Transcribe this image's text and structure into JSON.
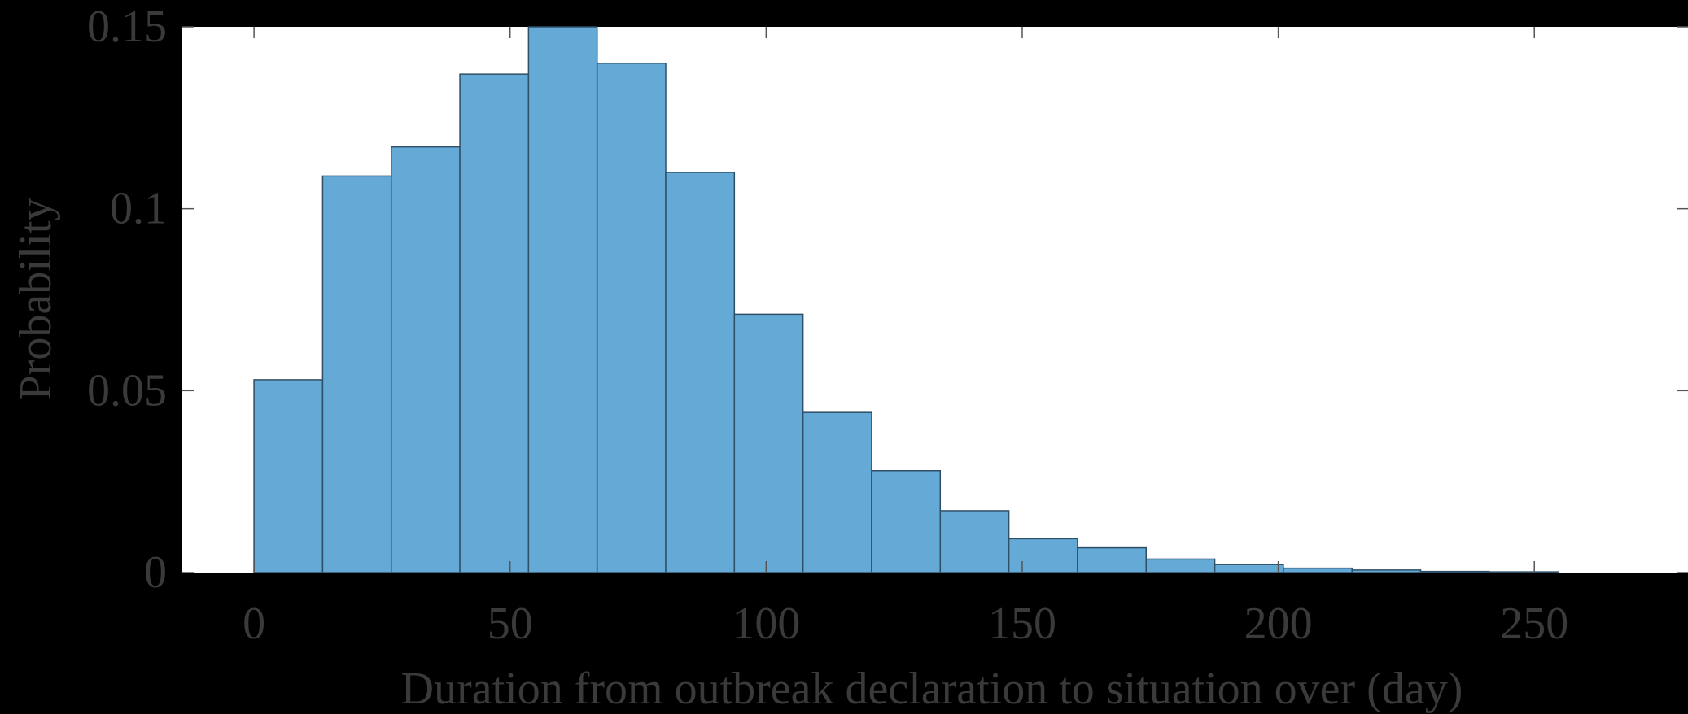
{
  "chart_data": {
    "type": "bar",
    "histogram": true,
    "bin_width": 13.4,
    "bin_start": 0,
    "values": [
      0.053,
      0.109,
      0.117,
      0.137,
      0.15,
      0.14,
      0.11,
      0.071,
      0.044,
      0.028,
      0.017,
      0.0093,
      0.0068,
      0.0037,
      0.0022,
      0.0012,
      0.0007,
      0.0003,
      0.0002
    ],
    "xlabel": "Duration from outbreak declaration to situation over (day)",
    "ylabel": "Probability",
    "xlim": [
      -14,
      280
    ],
    "ylim": [
      0,
      0.15
    ],
    "xticks": [
      0,
      50,
      100,
      150,
      200,
      250
    ],
    "xtick_labels": [
      "0",
      "50",
      "100",
      "150",
      "200",
      "250"
    ],
    "yticks": [
      0,
      0.05,
      0.1,
      0.15
    ],
    "ytick_labels": [
      "0",
      "0.05",
      "0.1",
      "0.15"
    ],
    "bar_color": "#65a9d7",
    "grid": false
  }
}
